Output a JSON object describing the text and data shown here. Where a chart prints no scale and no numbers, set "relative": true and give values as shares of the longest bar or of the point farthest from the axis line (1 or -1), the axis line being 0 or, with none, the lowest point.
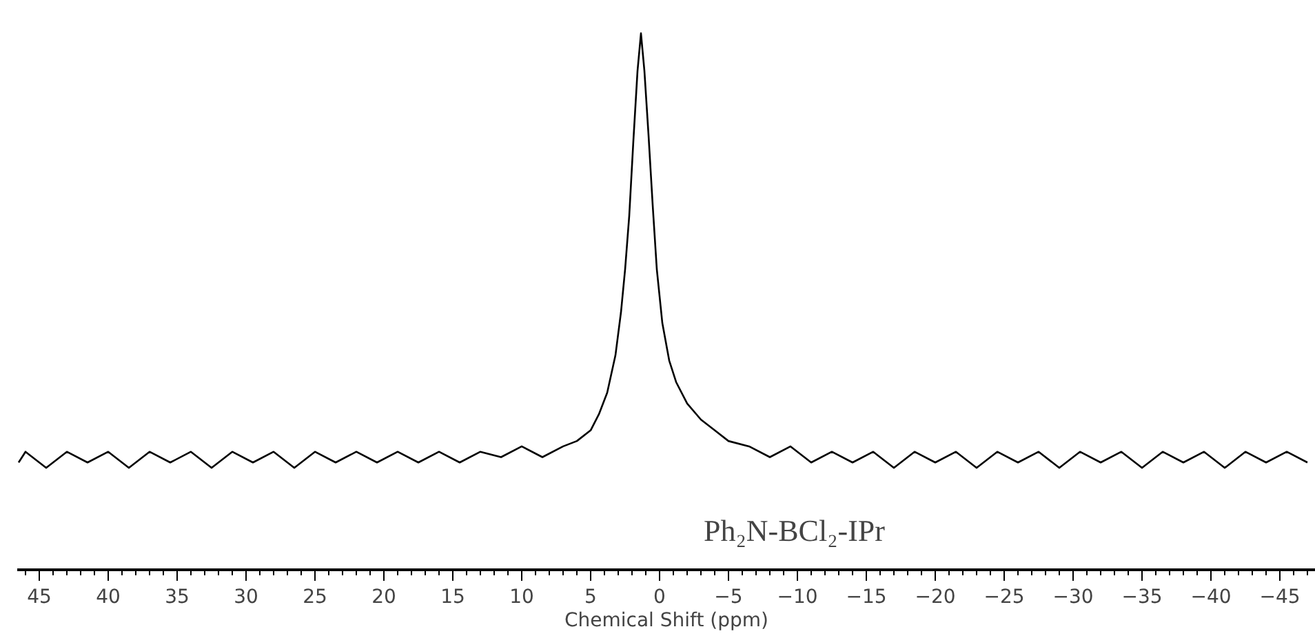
{
  "chart_data": {
    "type": "line",
    "relative": true,
    "xlabel": "Chemical Shift (ppm)",
    "annotations": [
      "Ph₂N-BCl₂-IPr"
    ],
    "x": [
      46.5,
      46,
      44.5,
      43,
      41.5,
      40,
      38.5,
      37,
      35.5,
      34,
      32.5,
      31,
      29.5,
      28,
      26.5,
      25,
      23.5,
      22,
      20.5,
      19,
      17.5,
      16,
      14.5,
      13,
      11.5,
      10,
      8.5,
      7,
      6,
      5,
      4.4,
      3.8,
      3.2,
      2.8,
      2.5,
      2.2,
      1.9,
      1.6,
      1.35,
      1.1,
      0.8,
      0.5,
      0.2,
      -0.2,
      -0.7,
      -1.2,
      -2,
      -3,
      -4,
      -5,
      -6.5,
      -8,
      -9.5,
      -11,
      -12.5,
      -14,
      -15.5,
      -17,
      -18.5,
      -20,
      -21.5,
      -23,
      -24.5,
      -26,
      -27.5,
      -29,
      -30.5,
      -32,
      -33.5,
      -35,
      -36.5,
      -38,
      -39.5,
      -41,
      -42.5,
      -44,
      -45.5,
      -47
    ],
    "values": [
      0.2,
      0.22,
      0.19,
      0.22,
      0.2,
      0.22,
      0.19,
      0.22,
      0.2,
      0.22,
      0.19,
      0.22,
      0.2,
      0.22,
      0.19,
      0.22,
      0.2,
      0.22,
      0.2,
      0.22,
      0.2,
      0.22,
      0.2,
      0.22,
      0.21,
      0.23,
      0.21,
      0.23,
      0.24,
      0.26,
      0.29,
      0.33,
      0.4,
      0.48,
      0.56,
      0.66,
      0.8,
      0.93,
      1.0,
      0.93,
      0.81,
      0.68,
      0.56,
      0.46,
      0.39,
      0.35,
      0.31,
      0.28,
      0.26,
      0.24,
      0.23,
      0.21,
      0.23,
      0.2,
      0.22,
      0.2,
      0.22,
      0.19,
      0.22,
      0.2,
      0.22,
      0.19,
      0.22,
      0.2,
      0.22,
      0.19,
      0.22,
      0.2,
      0.22,
      0.19,
      0.22,
      0.2,
      0.22,
      0.19,
      0.22,
      0.2,
      0.22,
      0.2
    ],
    "color": "#000000",
    "line_style": "solid",
    "marker": "none",
    "grid": false,
    "xlim": [
      46.6,
      -47.6
    ],
    "xticks": [
      45,
      40,
      35,
      30,
      25,
      20,
      15,
      10,
      5,
      0,
      -5,
      -10,
      -15,
      -20,
      -25,
      -30,
      -35,
      -40,
      -45,
      {
        "value": 46,
        "label": null
      },
      {
        "value": 44,
        "label": null
      },
      {
        "value": 43,
        "label": null
      },
      {
        "value": 42,
        "label": null
      },
      {
        "value": 41,
        "label": null
      },
      {
        "value": 39,
        "label": null
      },
      {
        "value": 38,
        "label": null
      },
      {
        "value": 37,
        "label": null
      },
      {
        "value": 36,
        "label": null
      },
      {
        "value": 34,
        "label": null
      },
      {
        "value": 33,
        "label": null
      },
      {
        "value": 32,
        "label": null
      },
      {
        "value": 31,
        "label": null
      },
      {
        "value": 29,
        "label": null
      },
      {
        "value": 28,
        "label": null
      },
      {
        "value": 27,
        "label": null
      },
      {
        "value": 26,
        "label": null
      },
      {
        "value": 24,
        "label": null
      },
      {
        "value": 23,
        "label": null
      },
      {
        "value": 22,
        "label": null
      },
      {
        "value": 21,
        "label": null
      },
      {
        "value": 19,
        "label": null
      },
      {
        "value": 18,
        "label": null
      },
      {
        "value": 17,
        "label": null
      },
      {
        "value": 16,
        "label": null
      },
      {
        "value": 14,
        "label": null
      },
      {
        "value": 13,
        "label": null
      },
      {
        "value": 12,
        "label": null
      },
      {
        "value": 11,
        "label": null
      },
      {
        "value": 9,
        "label": null
      },
      {
        "value": 8,
        "label": null
      },
      {
        "value": 7,
        "label": null
      },
      {
        "value": 6,
        "label": null
      },
      {
        "value": 4,
        "label": null
      },
      {
        "value": 3,
        "label": null
      },
      {
        "value": 2,
        "label": null
      },
      {
        "value": 1,
        "label": null
      },
      {
        "value": -1,
        "label": null
      },
      {
        "value": -2,
        "label": null
      },
      {
        "value": -3,
        "label": null
      },
      {
        "value": -4,
        "label": null
      },
      {
        "value": -6,
        "label": null
      },
      {
        "value": -7,
        "label": null
      },
      {
        "value": -8,
        "label": null
      },
      {
        "value": -9,
        "label": null
      },
      {
        "value": -11,
        "label": null
      },
      {
        "value": -12,
        "label": null
      },
      {
        "value": -13,
        "label": null
      },
      {
        "value": -14,
        "label": null
      },
      {
        "value": -16,
        "label": null
      },
      {
        "value": -17,
        "label": null
      },
      {
        "value": -18,
        "label": null
      },
      {
        "value": -19,
        "label": null
      },
      {
        "value": -21,
        "label": null
      },
      {
        "value": -22,
        "label": null
      },
      {
        "value": -23,
        "label": null
      },
      {
        "value": -24,
        "label": null
      },
      {
        "value": -26,
        "label": null
      },
      {
        "value": -27,
        "label": null
      },
      {
        "value": -28,
        "label": null
      },
      {
        "value": -29,
        "label": null
      },
      {
        "value": -31,
        "label": null
      },
      {
        "value": -32,
        "label": null
      },
      {
        "value": -33,
        "label": null
      },
      {
        "value": -34,
        "label": null
      },
      {
        "value": -36,
        "label": null
      },
      {
        "value": -37,
        "label": null
      },
      {
        "value": -38,
        "label": null
      },
      {
        "value": -39,
        "label": null
      },
      {
        "value": -41,
        "label": null
      },
      {
        "value": -42,
        "label": null
      },
      {
        "value": -43,
        "label": null
      },
      {
        "value": -44,
        "label": null
      },
      {
        "value": -46,
        "label": null
      },
      {
        "value": -47,
        "label": null
      }
    ]
  }
}
